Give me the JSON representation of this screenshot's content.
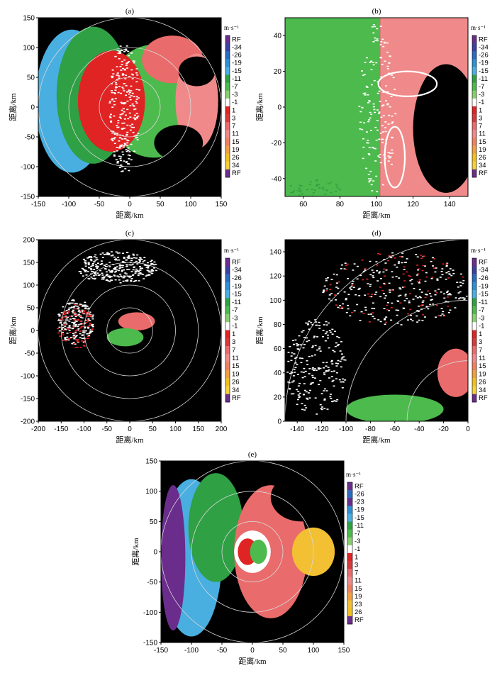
{
  "figure": {
    "panels": [
      {
        "label": "(a)",
        "type": "radar_velocity_ppi",
        "xlabel": "距离/km",
        "ylabel": "距离/km",
        "xlim": [
          -150,
          150
        ],
        "ylim": [
          -150,
          150
        ],
        "xticks": [
          -150,
          -100,
          -50,
          0,
          50,
          100,
          150
        ],
        "yticks": [
          150,
          100,
          50,
          0,
          -50,
          -100,
          -150
        ],
        "range_rings_km": [
          50,
          100,
          150
        ],
        "colorbar": {
          "unit": "m·s⁻¹",
          "labels": [
            "RF",
            "-34",
            "-26",
            "-19",
            "-15",
            "-11",
            "-7",
            "-3",
            "-1",
            "1",
            "3",
            "7",
            "11",
            "15",
            "19",
            "26",
            "34",
            "RF"
          ]
        }
      },
      {
        "label": "(b)",
        "type": "radar_velocity_ppi_zoom",
        "xlabel": "距离/km",
        "ylabel": "距离/km",
        "xlim": [
          50,
          150
        ],
        "ylim": [
          -50,
          50
        ],
        "xticks": [
          60,
          80,
          100,
          120,
          140
        ],
        "yticks": [
          40,
          20,
          0,
          -20,
          -40
        ],
        "annotations": [
          "ellipse near (115, 13)",
          "ellipse near (110, -30)"
        ],
        "colorbar": {
          "unit": "m·s⁻¹",
          "labels": [
            "RF",
            "-34",
            "-26",
            "-19",
            "-15",
            "-11",
            "-7",
            "-3",
            "-1",
            "1",
            "3",
            "7",
            "11",
            "15",
            "19",
            "26",
            "34",
            "RF"
          ]
        }
      },
      {
        "label": "(c)",
        "type": "radar_velocity_ppi",
        "xlabel": "距离/km",
        "ylabel": "距离/km",
        "xlim": [
          -200,
          200
        ],
        "ylim": [
          -200,
          200
        ],
        "xticks": [
          -200,
          -150,
          -100,
          -50,
          0,
          50,
          100,
          150,
          200
        ],
        "yticks": [
          200,
          150,
          100,
          50,
          0,
          -50,
          -100,
          -150,
          -200
        ],
        "range_rings_km": [
          50,
          100,
          150,
          200
        ],
        "colorbar": {
          "unit": "m·s⁻¹",
          "labels": [
            "RF",
            "-34",
            "-26",
            "-19",
            "-15",
            "-11",
            "-7",
            "-3",
            "-1",
            "1",
            "3",
            "7",
            "11",
            "15",
            "19",
            "26",
            "34",
            "RF"
          ]
        }
      },
      {
        "label": "(d)",
        "type": "radar_velocity_ppi_zoom",
        "xlabel": "距离/km",
        "ylabel": "距离/km",
        "xlim": [
          -150,
          0
        ],
        "ylim": [
          0,
          150
        ],
        "xticks": [
          -140,
          -120,
          -100,
          -80,
          -60,
          -40,
          -20,
          0
        ],
        "yticks": [
          140,
          120,
          100,
          80,
          60,
          40,
          20,
          0
        ],
        "range_rings_km": [
          50,
          100,
          150
        ],
        "colorbar": {
          "unit": "m·s⁻¹",
          "labels": [
            "RF",
            "-34",
            "-26",
            "-19",
            "-15",
            "-11",
            "-7",
            "-3",
            "-1",
            "1",
            "3",
            "7",
            "11",
            "15",
            "19",
            "26",
            "34",
            "RF"
          ]
        }
      },
      {
        "label": "(e)",
        "type": "radar_velocity_ppi",
        "xlabel": "距离/km",
        "ylabel": "距离/km",
        "xlim": [
          -150,
          150
        ],
        "ylim": [
          -150,
          150
        ],
        "xticks": [
          -150,
          -100,
          -50,
          0,
          50,
          100,
          150
        ],
        "yticks": [
          150,
          100,
          50,
          0,
          -50,
          -100,
          -150
        ],
        "range_rings_km": [
          50,
          100,
          150
        ],
        "colorbar": {
          "unit": "m·s⁻¹",
          "labels": [
            "RF",
            "-26",
            "-23",
            "-19",
            "-15",
            "-11",
            "-7",
            "-3",
            "-1",
            "1",
            "3",
            "7",
            "11",
            "15",
            "19",
            "23",
            "26",
            "RF"
          ]
        }
      }
    ],
    "palette": {
      "RF": "#6a2d8c",
      "-34": "#3d3fa3",
      "-26": "#2c6bc2",
      "-19": "#2e8fd3",
      "-15": "#49aee0",
      "-11": "#2fa044",
      "-7": "#4cba4c",
      "-3": "#88cf70",
      "-1": "#ffffff",
      "1": "#e02323",
      "3": "#d63a3a",
      "7": "#ea6b6b",
      "11": "#f08a8a",
      "15": "#ef8060",
      "19": "#f0a040",
      "23": "#f2c032",
      "26": "#f0c020",
      "34": "#f5d13a",
      "background": "#000000",
      "ring": "#d9d9d9"
    }
  }
}
